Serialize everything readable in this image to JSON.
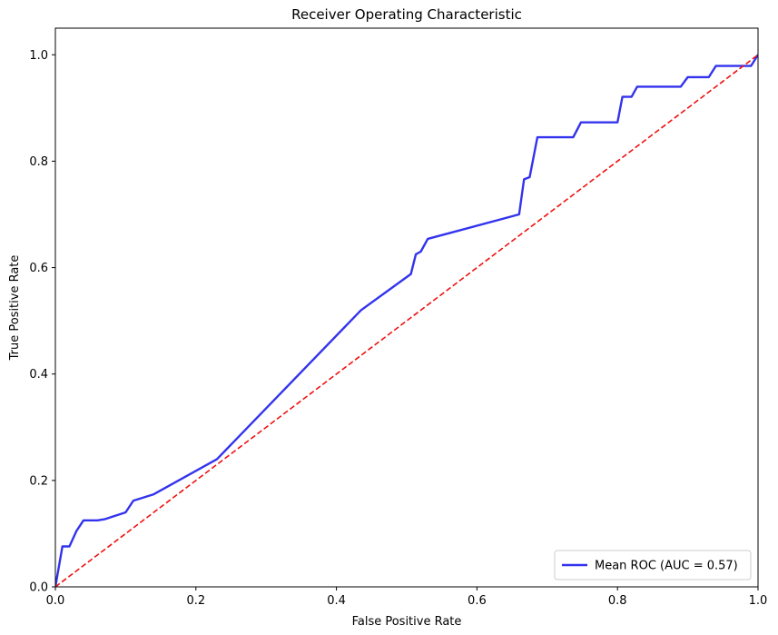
{
  "chart_data": {
    "type": "line",
    "title": "Receiver Operating Characteristic",
    "xlabel": "False Positive Rate",
    "ylabel": "True Positive Rate",
    "xlim": [
      0.0,
      1.0
    ],
    "ylim": [
      0.0,
      1.05
    ],
    "xticks": [
      {
        "value": 0.0,
        "label": "0.0"
      },
      {
        "value": 0.2,
        "label": "0.2"
      },
      {
        "value": 0.4,
        "label": "0.4"
      },
      {
        "value": 0.6,
        "label": "0.6"
      },
      {
        "value": 0.8,
        "label": "0.8"
      },
      {
        "value": 1.0,
        "label": "1.0"
      }
    ],
    "yticks": [
      {
        "value": 0.0,
        "label": "0.0"
      },
      {
        "value": 0.2,
        "label": "0.2"
      },
      {
        "value": 0.4,
        "label": "0.4"
      },
      {
        "value": 0.6,
        "label": "0.6"
      },
      {
        "value": 0.8,
        "label": "0.8"
      },
      {
        "value": 1.0,
        "label": "1.0"
      }
    ],
    "grid": false,
    "legend_position": "bottom-right",
    "series": [
      {
        "name": "Mean ROC (AUC = 0.57)",
        "color": "#3333ee",
        "style": "solid",
        "x": [
          0.0,
          0.01,
          0.02,
          0.03,
          0.04,
          0.06,
          0.07,
          0.1,
          0.111,
          0.14,
          0.23,
          0.435,
          0.506,
          0.513,
          0.52,
          0.53,
          0.66,
          0.667,
          0.675,
          0.686,
          0.737,
          0.748,
          0.8,
          0.807,
          0.82,
          0.828,
          0.89,
          0.9,
          0.93,
          0.94,
          0.99,
          1.0
        ],
        "y": [
          0.0,
          0.076,
          0.076,
          0.105,
          0.125,
          0.125,
          0.127,
          0.14,
          0.162,
          0.174,
          0.24,
          0.52,
          0.588,
          0.625,
          0.63,
          0.654,
          0.7,
          0.766,
          0.77,
          0.845,
          0.845,
          0.873,
          0.873,
          0.921,
          0.921,
          0.94,
          0.94,
          0.958,
          0.958,
          0.979,
          0.979,
          1.0
        ]
      },
      {
        "name": "",
        "color": "#ee1111",
        "style": "dashed",
        "x": [
          0.0,
          1.0
        ],
        "y": [
          0.0,
          1.0
        ]
      }
    ]
  }
}
